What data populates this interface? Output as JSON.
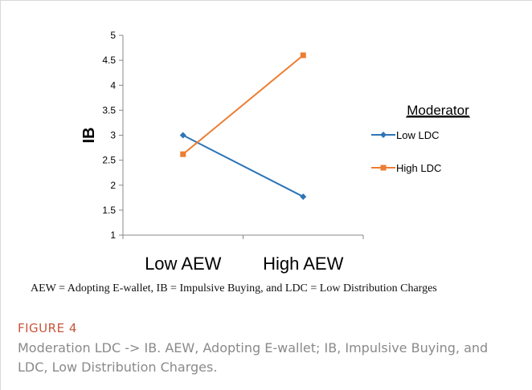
{
  "chart_data": {
    "type": "line",
    "categories": [
      "Low AEW",
      "High AEW"
    ],
    "series": [
      {
        "name": "Low LDC",
        "values": [
          3.0,
          1.77
        ],
        "color": "#2e75b6",
        "marker": "diamond"
      },
      {
        "name": "High LDC",
        "values": [
          2.62,
          4.6
        ],
        "color": "#ed7d31",
        "marker": "square"
      }
    ],
    "ylabel": "IB",
    "xlabel": "",
    "ylim": [
      1,
      5
    ],
    "yticks": [
      "1",
      "1.5",
      "2",
      "2.5",
      "3",
      "3.5",
      "4",
      "4.5",
      "5"
    ],
    "legend_title": "Moderator",
    "legend_position": "right",
    "grid": false
  },
  "note": "AEW = Adopting E-wallet, IB = Impulsive Buying, and LDC = Low Distribution Charges",
  "figure": {
    "label": "FIGURE 4",
    "caption": "Moderation LDC -> IB. AEW, Adopting E-wallet; IB, Impulsive Buying, and LDC, Low Distribution Charges."
  }
}
